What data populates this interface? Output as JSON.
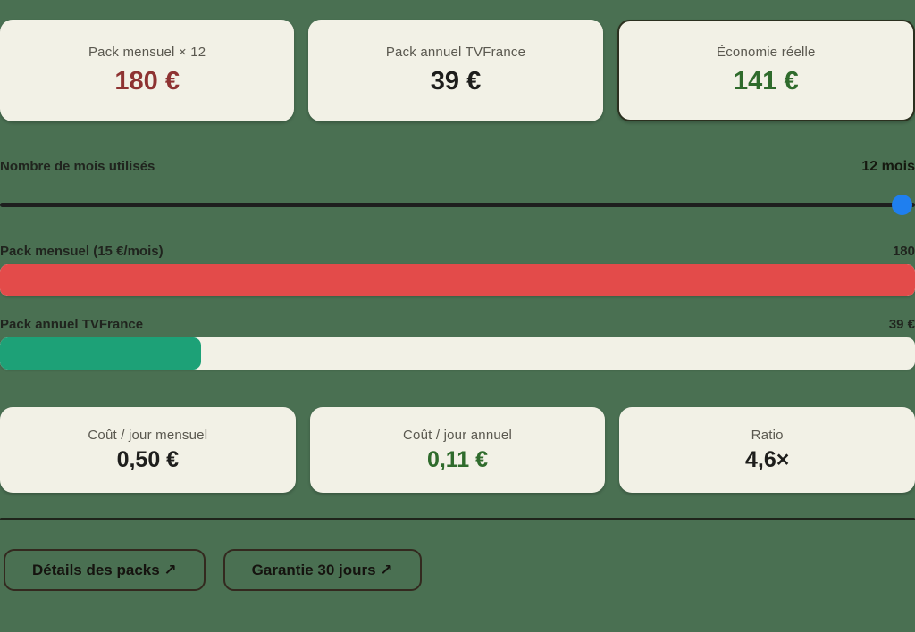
{
  "summary_cards": [
    {
      "label": "Pack mensuel × 12",
      "value": "180 €",
      "value_color": "#8e3332",
      "highlighted": false
    },
    {
      "label": "Pack annuel TVFrance",
      "value": "39 €",
      "value_color": "#1e1e1c",
      "highlighted": false
    },
    {
      "label": "Économie réelle",
      "value": "141 €",
      "value_color": "#2f6b2c",
      "highlighted": true
    }
  ],
  "slider": {
    "label": "Nombre de mois utilisés",
    "value_label": "12 mois",
    "value": 12,
    "thumb_color": "#1f7fef",
    "track_color": "#1e1e1e"
  },
  "bars": [
    {
      "label": "Pack mensuel (15 €/mois)",
      "value_label": "180",
      "fill_percent": 100,
      "fill_color": "#e34b4a"
    },
    {
      "label": "Pack annuel TVFrance",
      "value_label": "39 €",
      "fill_percent": 22,
      "fill_color": "#1da177"
    }
  ],
  "stat_cards": [
    {
      "label": "Coût / jour mensuel",
      "value": "0,50 €",
      "value_color": "#1e1e1c"
    },
    {
      "label": "Coût / jour annuel",
      "value": "0,11 €",
      "value_color": "#2f6b2c"
    },
    {
      "label": "Ratio",
      "value": "4,6×",
      "value_color": "#1e1e1c"
    }
  ],
  "actions": [
    {
      "label": "Détails des packs ↗"
    },
    {
      "label": "Garantie 30 jours ↗"
    }
  ],
  "colors": {
    "background": "#4a7052",
    "card_background": "#f2f1e6",
    "card_label": "#5a584f",
    "highlight_border": "#2b301f",
    "divider": "#1f241b"
  }
}
